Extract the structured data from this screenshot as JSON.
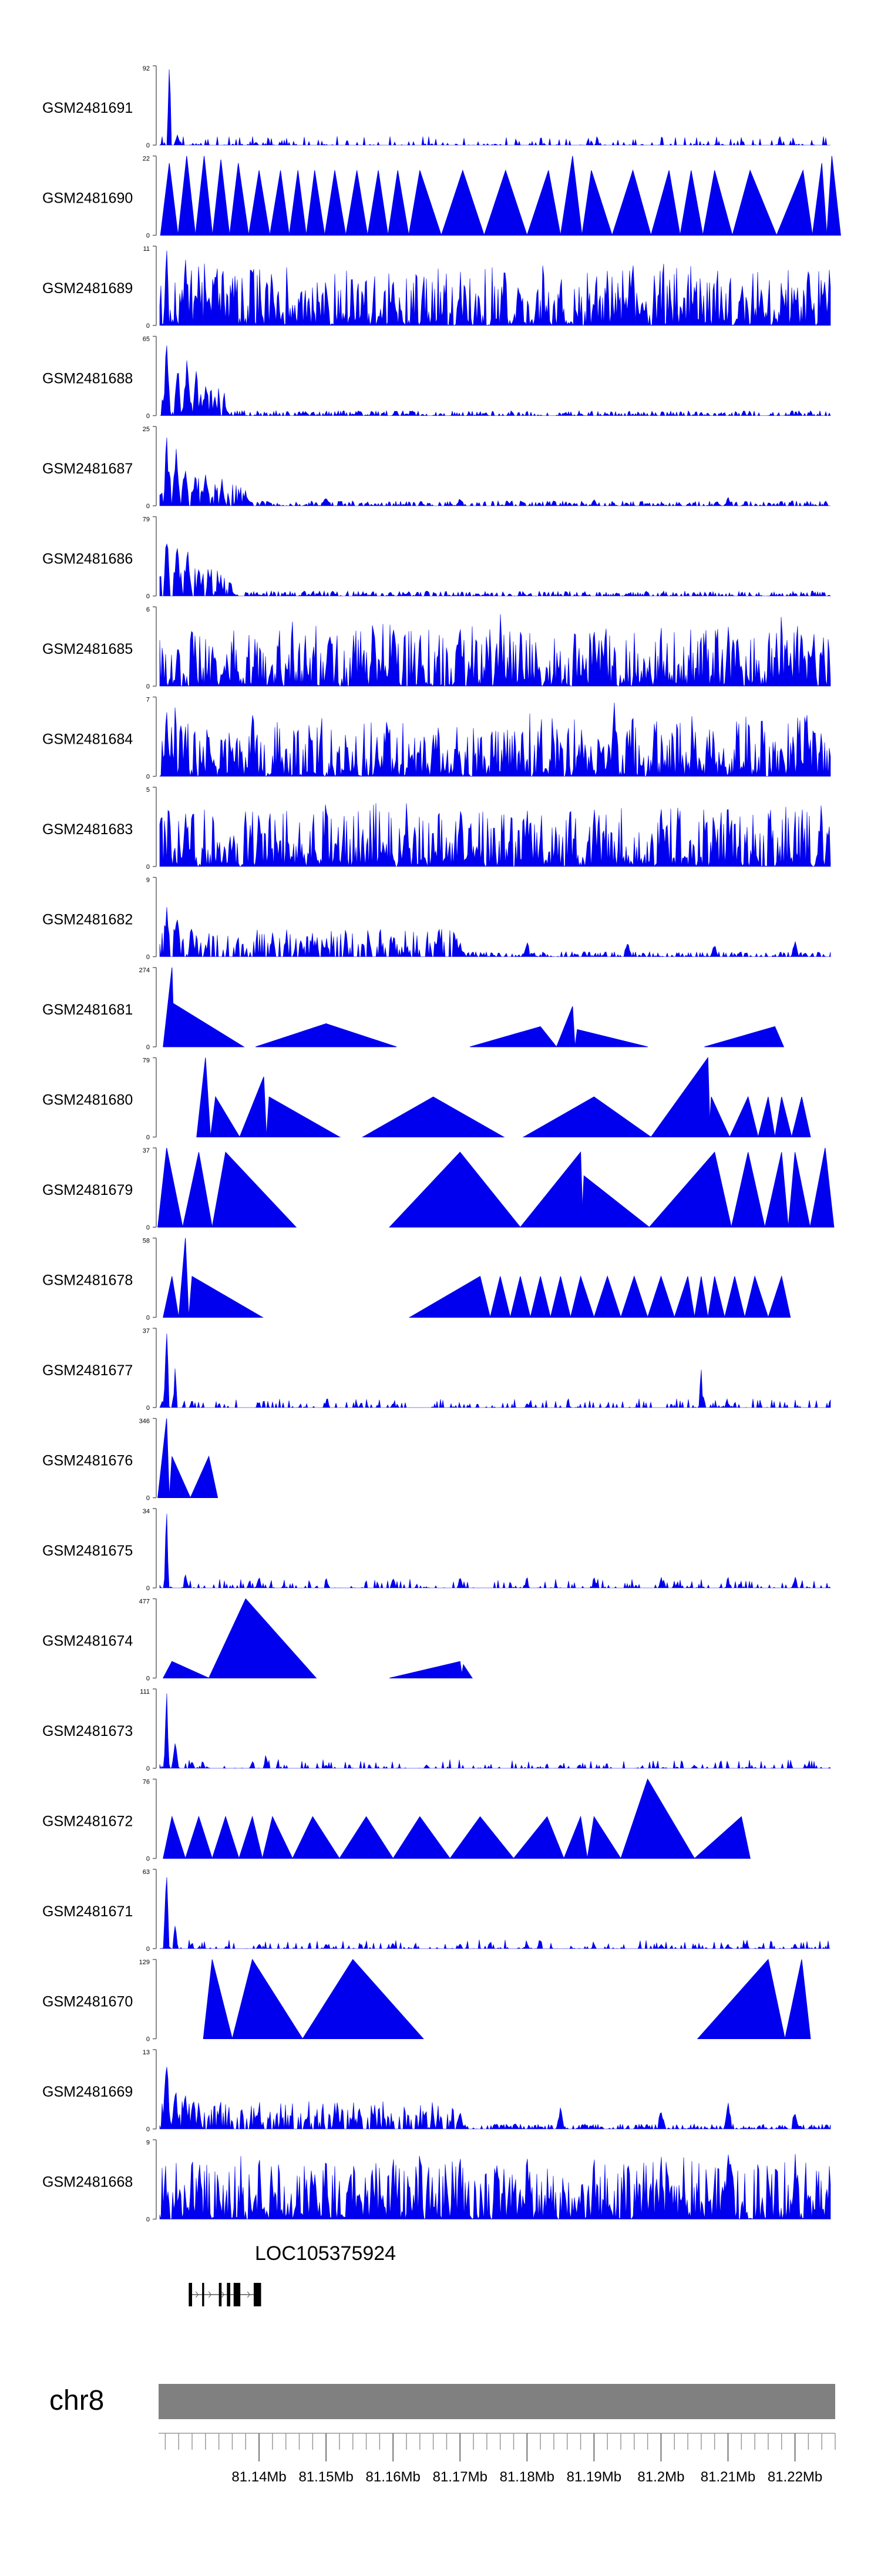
{
  "chart_data": {
    "type": "area",
    "title": "",
    "chromosome": "chr8",
    "gene_label": "LOC105375924",
    "xlim": [
      81.125,
      81.226
    ],
    "x_ticks": [
      {
        "label": "81.14Mb",
        "value": 81.14
      },
      {
        "label": "81.15Mb",
        "value": 81.15
      },
      {
        "label": "81.16Mb",
        "value": 81.16
      },
      {
        "label": "81.17Mb",
        "value": 81.17
      },
      {
        "label": "81.18Mb",
        "value": 81.18
      },
      {
        "label": "81.19Mb",
        "value": 81.19
      },
      {
        "label": "81.2Mb",
        "value": 81.2
      },
      {
        "label": "81.21Mb",
        "value": 81.21
      },
      {
        "label": "81.22Mb",
        "value": 81.22
      }
    ],
    "tracks": [
      {
        "name": "GSM2481691",
        "ymax": 92,
        "style": "sparse",
        "peaks": [
          [
            81.1266,
            92
          ],
          [
            81.1278,
            12
          ],
          [
            81.1395,
            4
          ]
        ]
      },
      {
        "name": "GSM2481690",
        "ymax": 22,
        "style": "triangles",
        "peaks": [
          [
            81.1266,
            20
          ],
          [
            81.1292,
            22
          ],
          [
            81.1318,
            22
          ],
          [
            81.1343,
            21
          ],
          [
            81.1369,
            20
          ],
          [
            81.14,
            18
          ],
          [
            81.1432,
            18
          ],
          [
            81.1458,
            18
          ],
          [
            81.1483,
            18
          ],
          [
            81.1513,
            18
          ],
          [
            81.1546,
            18
          ],
          [
            81.1578,
            18
          ],
          [
            81.1607,
            18
          ],
          [
            81.164,
            18
          ],
          [
            81.1704,
            18
          ],
          [
            81.1768,
            18
          ],
          [
            81.1832,
            18
          ],
          [
            81.1868,
            22
          ],
          [
            81.1896,
            18
          ],
          [
            81.1958,
            18
          ],
          [
            81.2012,
            18
          ],
          [
            81.2045,
            18
          ],
          [
            81.208,
            18
          ],
          [
            81.2133,
            18
          ],
          [
            81.2212,
            18
          ],
          [
            81.224,
            20
          ],
          [
            81.2255,
            22
          ]
        ]
      },
      {
        "name": "GSM2481689",
        "ymax": 11,
        "style": "dense",
        "peaks": [
          [
            81.1262,
            11
          ],
          [
            81.129,
            10
          ],
          [
            81.131,
            9
          ],
          [
            81.1335,
            8
          ],
          [
            81.136,
            7
          ],
          [
            81.142,
            6
          ],
          [
            81.15,
            6
          ],
          [
            81.16,
            7
          ],
          [
            81.17,
            6
          ],
          [
            81.185,
            6
          ],
          [
            81.199,
            7
          ],
          [
            81.205,
            6
          ],
          [
            81.215,
            6
          ],
          [
            81.2255,
            8
          ]
        ]
      },
      {
        "name": "GSM2481688",
        "ymax": 65,
        "style": "cluster",
        "peaks": [
          [
            81.1262,
            65
          ],
          [
            81.1278,
            58
          ],
          [
            81.1292,
            50
          ],
          [
            81.1306,
            40
          ],
          [
            81.132,
            30
          ],
          [
            81.1334,
            20
          ],
          [
            81.135,
            8
          ],
          [
            81.147,
            3
          ],
          [
            81.162,
            2
          ]
        ]
      },
      {
        "name": "GSM2481687",
        "ymax": 25,
        "style": "cluster",
        "peaks": [
          [
            81.1262,
            25
          ],
          [
            81.1276,
            21
          ],
          [
            81.129,
            18
          ],
          [
            81.1305,
            14
          ],
          [
            81.132,
            11
          ],
          [
            81.1345,
            8
          ],
          [
            81.138,
            5
          ],
          [
            81.15,
            4
          ],
          [
            81.17,
            3
          ],
          [
            81.19,
            3
          ],
          [
            81.21,
            3
          ]
        ]
      },
      {
        "name": "GSM2481686",
        "ymax": 79,
        "style": "cluster",
        "peaks": [
          [
            81.1262,
            79
          ],
          [
            81.1278,
            65
          ],
          [
            81.1294,
            55
          ],
          [
            81.131,
            40
          ],
          [
            81.1326,
            28
          ],
          [
            81.1342,
            20
          ],
          [
            81.136,
            5
          ]
        ]
      },
      {
        "name": "GSM2481685",
        "ymax": 6,
        "style": "dense",
        "peaks": [
          [
            81.13,
            5
          ],
          [
            81.145,
            5
          ],
          [
            81.157,
            6
          ],
          [
            81.16,
            5
          ],
          [
            81.17,
            5
          ],
          [
            81.176,
            6
          ],
          [
            81.19,
            5
          ],
          [
            81.2,
            5
          ],
          [
            81.21,
            5
          ],
          [
            81.218,
            6
          ],
          [
            81.221,
            5
          ]
        ]
      },
      {
        "name": "GSM2481684",
        "ymax": 7,
        "style": "dense",
        "peaks": [
          [
            81.1262,
            6
          ],
          [
            81.1275,
            7
          ],
          [
            81.129,
            5
          ],
          [
            81.136,
            3
          ],
          [
            81.159,
            5
          ],
          [
            81.166,
            4
          ],
          [
            81.193,
            7
          ],
          [
            81.218,
            3
          ],
          [
            81.223,
            4
          ]
        ]
      },
      {
        "name": "GSM2481683",
        "ymax": 5,
        "style": "dense",
        "peaks": [
          [
            81.13,
            4
          ],
          [
            81.14,
            4
          ],
          [
            81.15,
            4
          ],
          [
            81.162,
            4
          ],
          [
            81.17,
            4
          ],
          [
            81.18,
            4
          ],
          [
            81.19,
            4
          ],
          [
            81.2,
            4
          ],
          [
            81.21,
            4
          ],
          [
            81.22,
            4
          ]
        ]
      },
      {
        "name": "GSM2481682",
        "ymax": 9,
        "style": "cluster",
        "peaks": [
          [
            81.1262,
            8
          ],
          [
            81.1278,
            7
          ],
          [
            81.13,
            4
          ],
          [
            81.142,
            3
          ],
          [
            81.15,
            2
          ],
          [
            81.16,
            2
          ],
          [
            81.17,
            2
          ],
          [
            81.18,
            2
          ],
          [
            81.195,
            2
          ],
          [
            81.208,
            2
          ],
          [
            81.22,
            2
          ]
        ]
      },
      {
        "name": "GSM2481681",
        "ymax": 274,
        "style": "triangles",
        "peaks": [
          [
            81.127,
            274
          ],
          [
            81.1272,
            150
          ],
          [
            81.15,
            80
          ],
          [
            81.182,
            70
          ],
          [
            81.1868,
            140
          ],
          [
            81.1875,
            60
          ],
          [
            81.217,
            70
          ]
        ]
      },
      {
        "name": "GSM2481680",
        "ymax": 79,
        "style": "triangles",
        "peaks": [
          [
            81.132,
            79
          ],
          [
            81.1335,
            40
          ],
          [
            81.1407,
            60
          ],
          [
            81.1415,
            40
          ],
          [
            81.166,
            40
          ],
          [
            81.19,
            40
          ],
          [
            81.207,
            79
          ],
          [
            81.2075,
            40
          ],
          [
            81.213,
            40
          ],
          [
            81.216,
            40
          ],
          [
            81.218,
            40
          ],
          [
            81.221,
            40
          ]
        ]
      },
      {
        "name": "GSM2481679",
        "ymax": 37,
        "style": "triangles",
        "peaks": [
          [
            81.1262,
            37
          ],
          [
            81.131,
            35
          ],
          [
            81.135,
            35
          ],
          [
            81.17,
            35
          ],
          [
            81.188,
            35
          ],
          [
            81.1885,
            24
          ],
          [
            81.208,
            35
          ],
          [
            81.213,
            35
          ],
          [
            81.218,
            35
          ],
          [
            81.22,
            35
          ],
          [
            81.2245,
            37
          ]
        ]
      },
      {
        "name": "GSM2481678",
        "ymax": 58,
        "style": "triangles",
        "peaks": [
          [
            81.127,
            30
          ],
          [
            81.129,
            58
          ],
          [
            81.13,
            30
          ],
          [
            81.173,
            30
          ],
          [
            81.176,
            30
          ],
          [
            81.179,
            30
          ],
          [
            81.182,
            30
          ],
          [
            81.185,
            30
          ],
          [
            81.188,
            30
          ],
          [
            81.192,
            30
          ],
          [
            81.196,
            30
          ],
          [
            81.2,
            30
          ],
          [
            81.204,
            30
          ],
          [
            81.206,
            30
          ],
          [
            81.208,
            30
          ],
          [
            81.211,
            30
          ],
          [
            81.214,
            30
          ],
          [
            81.218,
            30
          ]
        ]
      },
      {
        "name": "GSM2481677",
        "ymax": 37,
        "style": "sparse",
        "peaks": [
          [
            81.1262,
            37
          ],
          [
            81.1275,
            20
          ],
          [
            81.13,
            4
          ],
          [
            81.14,
            3
          ],
          [
            81.15,
            2
          ],
          [
            81.16,
            2
          ],
          [
            81.18,
            2
          ],
          [
            81.206,
            18
          ],
          [
            81.21,
            2
          ]
        ]
      },
      {
        "name": "GSM2481676",
        "ymax": 346,
        "style": "triangles",
        "peaks": [
          [
            81.1262,
            346
          ],
          [
            81.127,
            180
          ],
          [
            81.1325,
            180
          ]
        ]
      },
      {
        "name": "GSM2481675",
        "ymax": 34,
        "style": "sparse",
        "peaks": [
          [
            81.1262,
            34
          ],
          [
            81.129,
            6
          ],
          [
            81.14,
            5
          ],
          [
            81.15,
            5
          ],
          [
            81.16,
            5
          ],
          [
            81.17,
            5
          ],
          [
            81.18,
            5
          ],
          [
            81.19,
            5
          ],
          [
            81.2,
            5
          ],
          [
            81.21,
            5
          ],
          [
            81.22,
            5
          ]
        ]
      },
      {
        "name": "GSM2481674",
        "ymax": 477,
        "style": "triangles",
        "peaks": [
          [
            81.127,
            100
          ],
          [
            81.138,
            477
          ],
          [
            81.17,
            100
          ],
          [
            81.1705,
            80
          ]
        ]
      },
      {
        "name": "GSM2481673",
        "ymax": 111,
        "style": "sparse",
        "peaks": [
          [
            81.1262,
            111
          ],
          [
            81.1275,
            40
          ],
          [
            81.13,
            10
          ],
          [
            81.139,
            10
          ],
          [
            81.141,
            20
          ],
          [
            81.15,
            5
          ],
          [
            81.165,
            5
          ],
          [
            81.185,
            5
          ],
          [
            81.205,
            5
          ]
        ]
      },
      {
        "name": "GSM2481672",
        "ymax": 76,
        "style": "triangles",
        "peaks": [
          [
            81.127,
            40
          ],
          [
            81.131,
            40
          ],
          [
            81.135,
            40
          ],
          [
            81.139,
            40
          ],
          [
            81.142,
            40
          ],
          [
            81.148,
            40
          ],
          [
            81.156,
            40
          ],
          [
            81.164,
            40
          ],
          [
            81.173,
            40
          ],
          [
            81.183,
            40
          ],
          [
            81.188,
            40
          ],
          [
            81.19,
            40
          ],
          [
            81.198,
            76
          ],
          [
            81.212,
            40
          ]
        ]
      },
      {
        "name": "GSM2481671",
        "ymax": 63,
        "style": "sparse",
        "peaks": [
          [
            81.1262,
            63
          ],
          [
            81.1275,
            20
          ],
          [
            81.13,
            5
          ],
          [
            81.14,
            4
          ],
          [
            81.15,
            4
          ],
          [
            81.16,
            4
          ],
          [
            81.17,
            4
          ],
          [
            81.18,
            4
          ],
          [
            81.19,
            4
          ],
          [
            81.2,
            4
          ],
          [
            81.21,
            4
          ],
          [
            81.22,
            4
          ]
        ]
      },
      {
        "name": "GSM2481670",
        "ymax": 129,
        "style": "triangles",
        "peaks": [
          [
            81.133,
            129
          ],
          [
            81.139,
            129
          ],
          [
            81.154,
            129
          ],
          [
            81.216,
            129
          ],
          [
            81.221,
            129
          ]
        ]
      },
      {
        "name": "GSM2481669",
        "ymax": 13,
        "style": "cluster",
        "peaks": [
          [
            81.1262,
            13
          ],
          [
            81.1275,
            10
          ],
          [
            81.129,
            7
          ],
          [
            81.131,
            5
          ],
          [
            81.14,
            4
          ],
          [
            81.155,
            4
          ],
          [
            81.17,
            4
          ],
          [
            81.185,
            4
          ],
          [
            81.2,
            4
          ],
          [
            81.21,
            5
          ],
          [
            81.22,
            4
          ]
        ]
      },
      {
        "name": "GSM2481668",
        "ymax": 9,
        "style": "dense",
        "peaks": [
          [
            81.13,
            8
          ],
          [
            81.14,
            8
          ],
          [
            81.15,
            8
          ],
          [
            81.16,
            8
          ],
          [
            81.17,
            8
          ],
          [
            81.18,
            8
          ],
          [
            81.19,
            8
          ],
          [
            81.2,
            8
          ],
          [
            81.21,
            8
          ],
          [
            81.22,
            8
          ]
        ]
      }
    ],
    "gene_exons": [
      [
        81.1295,
        81.13
      ],
      [
        81.1315,
        81.1318
      ],
      [
        81.134,
        81.1344
      ],
      [
        81.1352,
        81.1357
      ],
      [
        81.1362,
        81.1372
      ],
      [
        81.1392,
        81.1403
      ]
    ],
    "gene_span": [
      81.1295,
      81.1403
    ],
    "track_color": "#0000ee",
    "ideogram_color": "#808080",
    "ymin_label": "0"
  }
}
